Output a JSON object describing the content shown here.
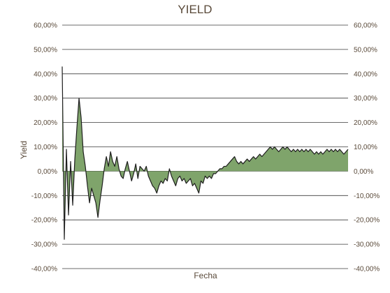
{
  "chart_data": {
    "type": "area",
    "title": "YIELD",
    "xlabel": "Fecha",
    "ylabel": "Yield",
    "ylim": [
      -40,
      60
    ],
    "yticks": [
      60,
      50,
      40,
      30,
      20,
      10,
      0,
      -10,
      -20,
      -30,
      -40
    ],
    "ytick_labels": [
      "60,00%",
      "50,00%",
      "40,00%",
      "30,00%",
      "20,00%",
      "10,00%",
      "0,00%",
      "-10,00%",
      "-20,00%",
      "-30,00%",
      "-40,00%"
    ],
    "grid": true,
    "legend": "none",
    "colors": {
      "fill": "#7fa46b",
      "line": "#1e1e1e",
      "grid": "#3a3a3a",
      "text": "#5a4a3a"
    },
    "series": [
      {
        "values": [
          43,
          -28,
          9,
          -18,
          4,
          -14,
          5,
          18,
          30,
          22,
          8,
          2,
          -6,
          -13,
          -7,
          -10,
          -13,
          -19,
          -12,
          -6,
          1,
          6,
          2,
          8,
          4,
          2,
          6,
          1,
          -2,
          -3,
          1,
          4,
          0,
          -4,
          -1,
          3,
          -3,
          2,
          1,
          0,
          2,
          -2,
          -4,
          -6,
          -7,
          -9,
          -6,
          -4,
          -5,
          -3,
          -4,
          1,
          -2,
          -4,
          -6,
          -3,
          -2,
          -4,
          -3,
          -5,
          -4,
          -3,
          -6,
          -5,
          -7,
          -9,
          -4,
          -5,
          -2,
          -3,
          -2,
          -3,
          -1,
          -1,
          0,
          1,
          1,
          2,
          2,
          3,
          4,
          5,
          6,
          4,
          3,
          4,
          3,
          4,
          5,
          4,
          5,
          6,
          5,
          6,
          7,
          6,
          7,
          8,
          9,
          10,
          9,
          10,
          9,
          8,
          9,
          10,
          9,
          10,
          9,
          8,
          9,
          8,
          9,
          8,
          9,
          8,
          9,
          8,
          9,
          8,
          7,
          8,
          7,
          8,
          7,
          8,
          9,
          8,
          9,
          8,
          9,
          8,
          9,
          8,
          7,
          8,
          9
        ]
      }
    ]
  }
}
